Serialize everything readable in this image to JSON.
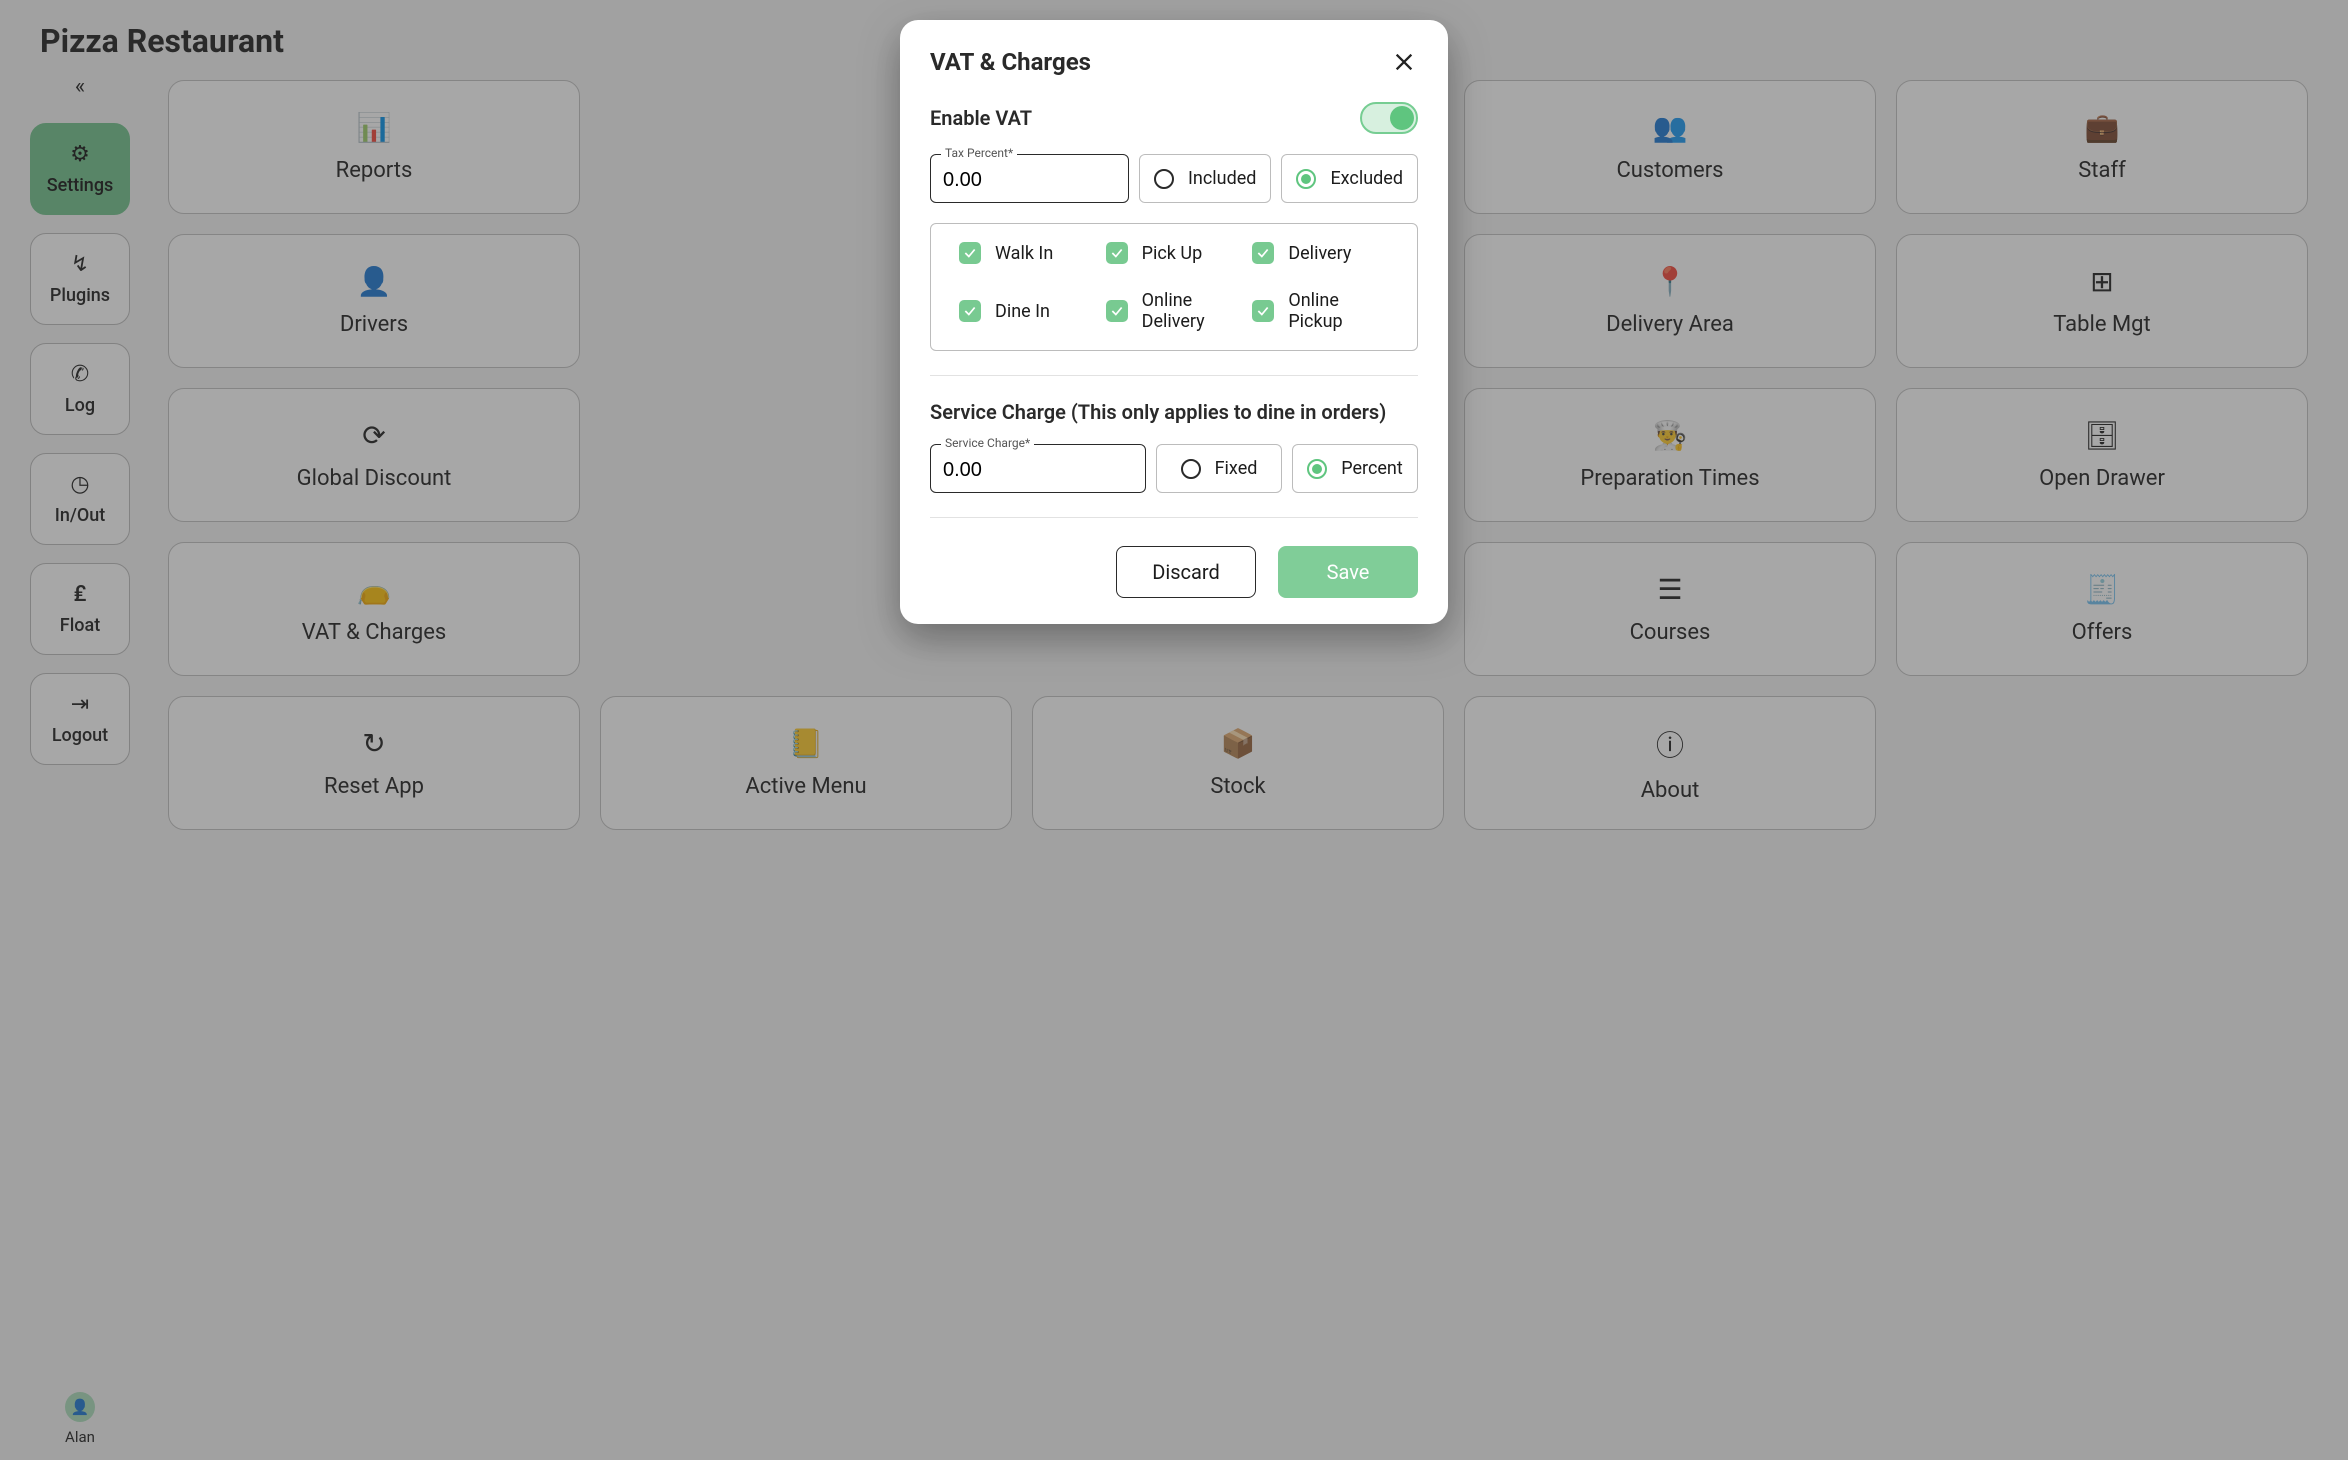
{
  "header": {
    "title": "Pizza Restaurant"
  },
  "sidebar": {
    "collapse_glyph": "«",
    "items": [
      {
        "label": "Settings",
        "icon": "⚙",
        "active": true
      },
      {
        "label": "Plugins",
        "icon": "↯",
        "active": false
      },
      {
        "label": "Log",
        "icon": "✆",
        "active": false
      },
      {
        "label": "In/Out",
        "icon": "◷",
        "active": false
      },
      {
        "label": "Float",
        "icon": "₤",
        "active": false
      },
      {
        "label": "Logout",
        "icon": "⇥",
        "active": false
      }
    ],
    "user": {
      "name": "Alan",
      "avatar_glyph": "👤"
    }
  },
  "tiles": [
    {
      "label": "Reports",
      "icon": "📊"
    },
    {
      "label": "Customers",
      "icon": "👥"
    },
    {
      "label": "Staff",
      "icon": "💼"
    },
    {
      "label": "Drivers",
      "icon": "👤"
    },
    {
      "label": "Delivery Area",
      "icon": "📍"
    },
    {
      "label": "Table Mgt",
      "icon": "⊞"
    },
    {
      "label": "Global Discount",
      "icon": "⟳"
    },
    {
      "label": "Preparation Times",
      "icon": "👨‍🍳"
    },
    {
      "label": "Open Drawer",
      "icon": "🗄"
    },
    {
      "label": "VAT & Charges",
      "icon": "👝"
    },
    {
      "label": "Courses",
      "icon": "☰"
    },
    {
      "label": "Offers",
      "icon": "🧾"
    },
    {
      "label": "Reset App",
      "icon": "↻"
    },
    {
      "label": "Active Menu",
      "icon": "📒"
    },
    {
      "label": "Stock",
      "icon": "📦"
    },
    {
      "label": "About",
      "icon": "ⓘ"
    }
  ],
  "dialog": {
    "title": "VAT & Charges",
    "enable_vat_label": "Enable VAT",
    "enable_vat_on": true,
    "tax_percent_label": "Tax Percent*",
    "tax_percent_value": "0.00",
    "tax_mode_included": "Included",
    "tax_mode_excluded": "Excluded",
    "tax_mode_selected": "Excluded",
    "order_types": [
      {
        "label": "Walk In",
        "checked": true
      },
      {
        "label": "Pick Up",
        "checked": true
      },
      {
        "label": "Delivery",
        "checked": true
      },
      {
        "label": "Dine In",
        "checked": true
      },
      {
        "label": "Online Delivery",
        "checked": true
      },
      {
        "label": "Online Pickup",
        "checked": true
      }
    ],
    "service_section_title": "Service Charge (This only applies to dine in orders)",
    "service_charge_label": "Service Charge*",
    "service_charge_value": "0.00",
    "service_mode_fixed": "Fixed",
    "service_mode_percent": "Percent",
    "service_mode_selected": "Percent",
    "discard_label": "Discard",
    "save_label": "Save"
  },
  "tile_grid_positions": [
    [
      0,
      0
    ],
    [
      0,
      3
    ],
    [
      0,
      4
    ],
    [
      1,
      0
    ],
    [
      1,
      3
    ],
    [
      1,
      4
    ],
    [
      2,
      0
    ],
    [
      2,
      3
    ],
    [
      2,
      4
    ],
    [
      3,
      0
    ],
    [
      3,
      3
    ],
    [
      3,
      4
    ],
    [
      4,
      0
    ],
    [
      4,
      1
    ],
    [
      4,
      2
    ],
    [
      4,
      3
    ]
  ]
}
